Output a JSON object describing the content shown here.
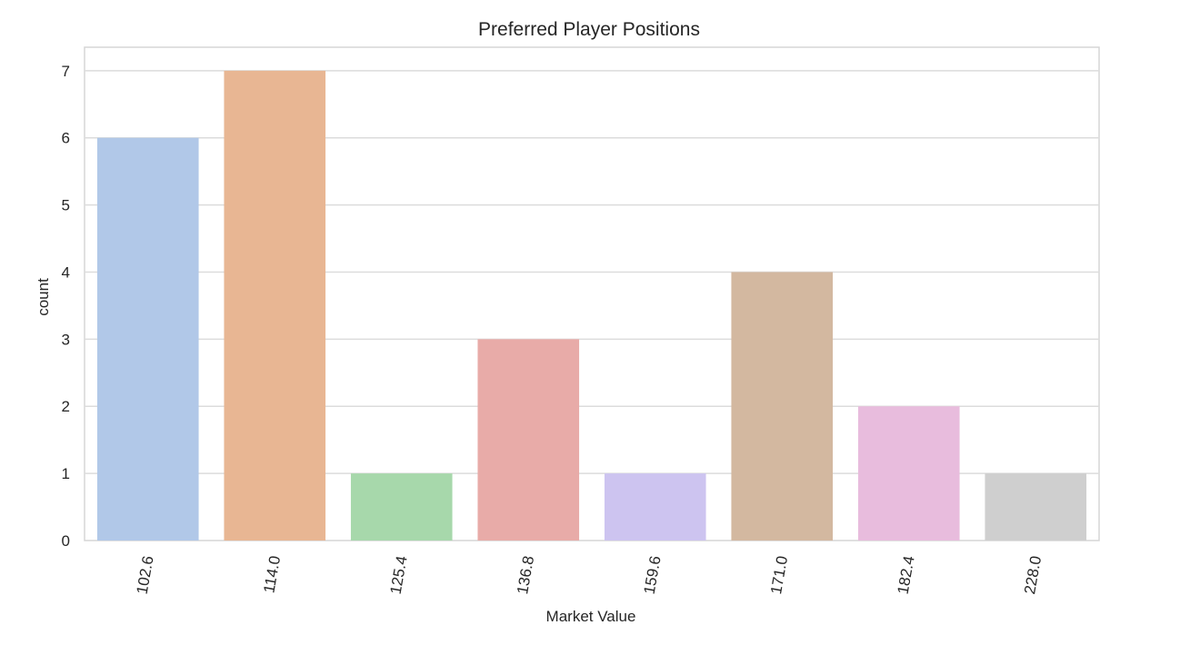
{
  "chart_data": {
    "type": "bar",
    "title": "Preferred Player Positions",
    "xlabel": "Market Value",
    "ylabel": "count",
    "categories": [
      "102.6",
      "114.0",
      "125.4",
      "136.8",
      "159.6",
      "171.0",
      "182.4",
      "228.0"
    ],
    "values": [
      6,
      7,
      1,
      3,
      1,
      4,
      2,
      1
    ],
    "colors": [
      "#b1c8e8",
      "#e8b693",
      "#a7d8ab",
      "#e8aba8",
      "#cdc4f0",
      "#d3b8a0",
      "#e8bcdd",
      "#cfcfcf"
    ],
    "ylim": [
      0,
      7.35
    ],
    "yticks": [
      "0",
      "1",
      "2",
      "3",
      "4",
      "5",
      "6",
      "7"
    ],
    "grid": true,
    "xtick_rotation": -80
  }
}
